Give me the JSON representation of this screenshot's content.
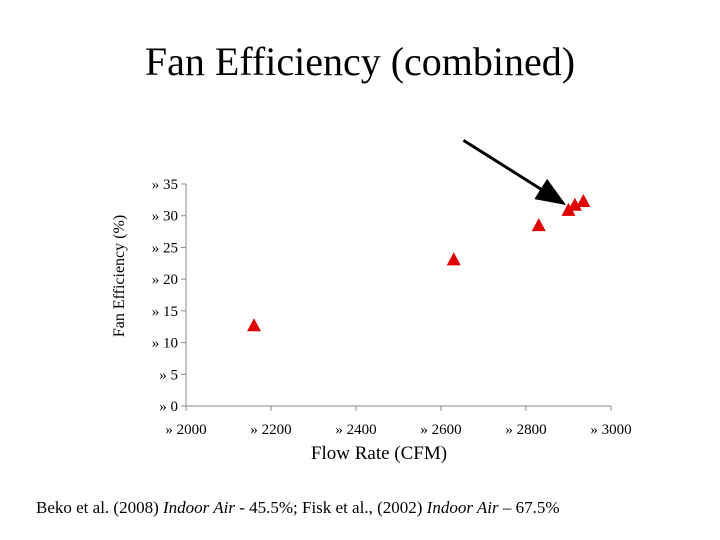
{
  "title": "Fan Efficiency (combined)",
  "chart_data": {
    "type": "scatter",
    "title": "Fan Efficiency (combined)",
    "xlabel": "Flow Rate (CFM)",
    "ylabel": "Fan Efficiency (%)",
    "xlim": [
      2000,
      3000
    ],
    "ylim": [
      0,
      35
    ],
    "x_ticks": [
      2000,
      2200,
      2400,
      2600,
      2800,
      3000
    ],
    "y_ticks": [
      0,
      5,
      10,
      15,
      20,
      25,
      30,
      35
    ],
    "x_tick_labels": [
      "» 2000",
      "» 2200",
      "» 2400",
      "» 2600",
      "» 2800",
      "» 3000"
    ],
    "y_tick_labels": [
      "» 0",
      "» 5",
      "» 10",
      "» 15",
      "» 20",
      "» 25",
      "» 30",
      "» 35"
    ],
    "grid": false,
    "marker": "triangle",
    "marker_color": "#e00000",
    "series": [
      {
        "x": [
          2160,
          2630,
          2830,
          2900,
          2915,
          2935
        ],
        "y": [
          12.8,
          23.2,
          28.6,
          31.0,
          31.8,
          32.4
        ]
      }
    ],
    "annotations": [
      {
        "type": "arrow",
        "points_to": {
          "x": 2900,
          "y": 31.0
        }
      }
    ]
  },
  "footer": {
    "part1": "Beko et al. (2008) ",
    "journal1": "Indoor Air",
    "part2": " -  45.5%; Fisk et al., (2002) ",
    "journal2": "Indoor Air",
    "part3": " – 67.5%"
  }
}
